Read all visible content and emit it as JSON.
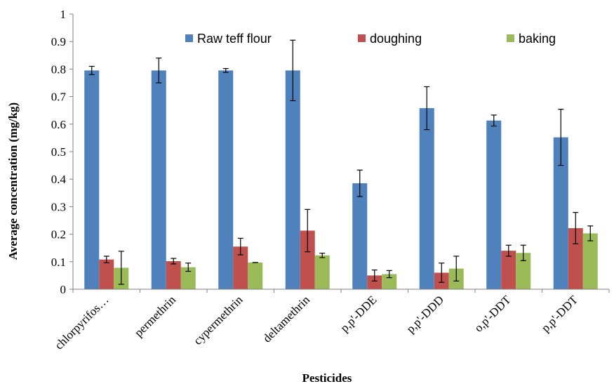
{
  "chart_data": {
    "type": "bar",
    "title": "",
    "xlabel": "Pesticides",
    "ylabel": "Average concentration (mg/kg)",
    "ylim": [
      0,
      1
    ],
    "yticks": [
      0,
      0.1,
      0.2,
      0.3,
      0.4,
      0.5,
      0.6,
      0.7,
      0.8,
      0.9,
      1
    ],
    "ytick_labels": [
      "0",
      "0.1",
      "0.2",
      "0.3",
      "0.4",
      "0.5",
      "0.6",
      "0.7",
      "0.8",
      "0.9",
      "1"
    ],
    "categories": [
      "chlorpyrifos…",
      "permethrin",
      "cypermethrin",
      "deltamethrin",
      "p,p'-DDE",
      "p,p'-DDD",
      "o,p'-DDT",
      "p,p'-DDT"
    ],
    "legend_position": "top",
    "grid": false,
    "series": [
      {
        "name": "Raw teff flour",
        "color": "#4F81BD",
        "values": [
          0.795,
          0.795,
          0.795,
          0.795,
          0.385,
          0.658,
          0.613,
          0.552
        ],
        "errors": [
          0.015,
          0.045,
          0.007,
          0.11,
          0.048,
          0.078,
          0.02,
          0.102
        ]
      },
      {
        "name": "doughing",
        "color": "#C0504D",
        "values": [
          0.108,
          0.102,
          0.155,
          0.213,
          0.05,
          0.06,
          0.14,
          0.222
        ],
        "errors": [
          0.012,
          0.01,
          0.03,
          0.077,
          0.02,
          0.035,
          0.02,
          0.057
        ]
      },
      {
        "name": "baking",
        "color": "#9BBB59",
        "values": [
          0.078,
          0.08,
          0.097,
          0.123,
          0.055,
          0.075,
          0.132,
          0.203
        ],
        "errors": [
          0.06,
          0.015,
          0.0,
          0.008,
          0.013,
          0.045,
          0.028,
          0.027
        ]
      }
    ]
  }
}
